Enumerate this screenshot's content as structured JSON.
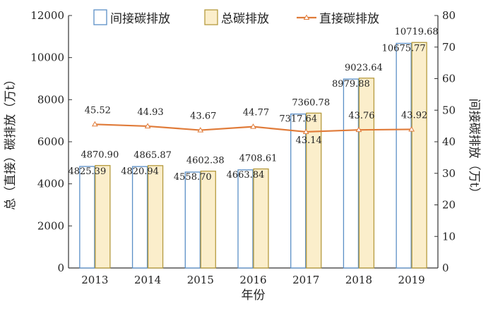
{
  "chart_data": {
    "type": "bar",
    "categories": [
      "2013",
      "2014",
      "2015",
      "2016",
      "2017",
      "2018",
      "2019"
    ],
    "xlabel": "年份",
    "ylabel_left": "总（直接）碳排放（万t）",
    "ylabel_right": "间接碳排放（万t）",
    "ylim_left": [
      0,
      12000
    ],
    "ylim_right": [
      0,
      80
    ],
    "yticks_left": [
      "0",
      "2000",
      "4000",
      "6000",
      "8000",
      "10000",
      "12000"
    ],
    "yticks_right": [
      "0",
      "10",
      "20",
      "30",
      "40",
      "50",
      "60",
      "70",
      "80"
    ],
    "grid": false,
    "legend_position": "top",
    "series": [
      {
        "name": "间接碳排放",
        "kind": "bar",
        "axis": "left",
        "values": [
          4825.39,
          4820.94,
          4558.7,
          4663.84,
          7317.64,
          8979.88,
          10675.77
        ],
        "labels": [
          "4825.39",
          "4820.94",
          "4558.70",
          "4663.84",
          "7317.64",
          "8979.88",
          "10675.77"
        ],
        "fill": "#ffffff",
        "stroke": "#5b8fc7"
      },
      {
        "name": "总碳排放",
        "kind": "bar",
        "axis": "left",
        "values": [
          4870.9,
          4865.87,
          4602.38,
          4708.61,
          7360.78,
          9023.64,
          10719.68
        ],
        "labels": [
          "4870.90",
          "4865.87",
          "4602.38",
          "4708.61",
          "7360.78",
          "9023.64",
          "10719.68"
        ],
        "fill": "#fbeecb",
        "stroke": "#b59a3e"
      },
      {
        "name": "直接碳排放",
        "kind": "line",
        "axis": "right",
        "values": [
          45.52,
          44.93,
          43.67,
          44.77,
          43.14,
          43.76,
          43.92
        ],
        "labels": [
          "45.52",
          "44.93",
          "43.67",
          "44.77",
          "43.14",
          "43.76",
          "43.92"
        ],
        "stroke": "#e07b39"
      }
    ]
  }
}
